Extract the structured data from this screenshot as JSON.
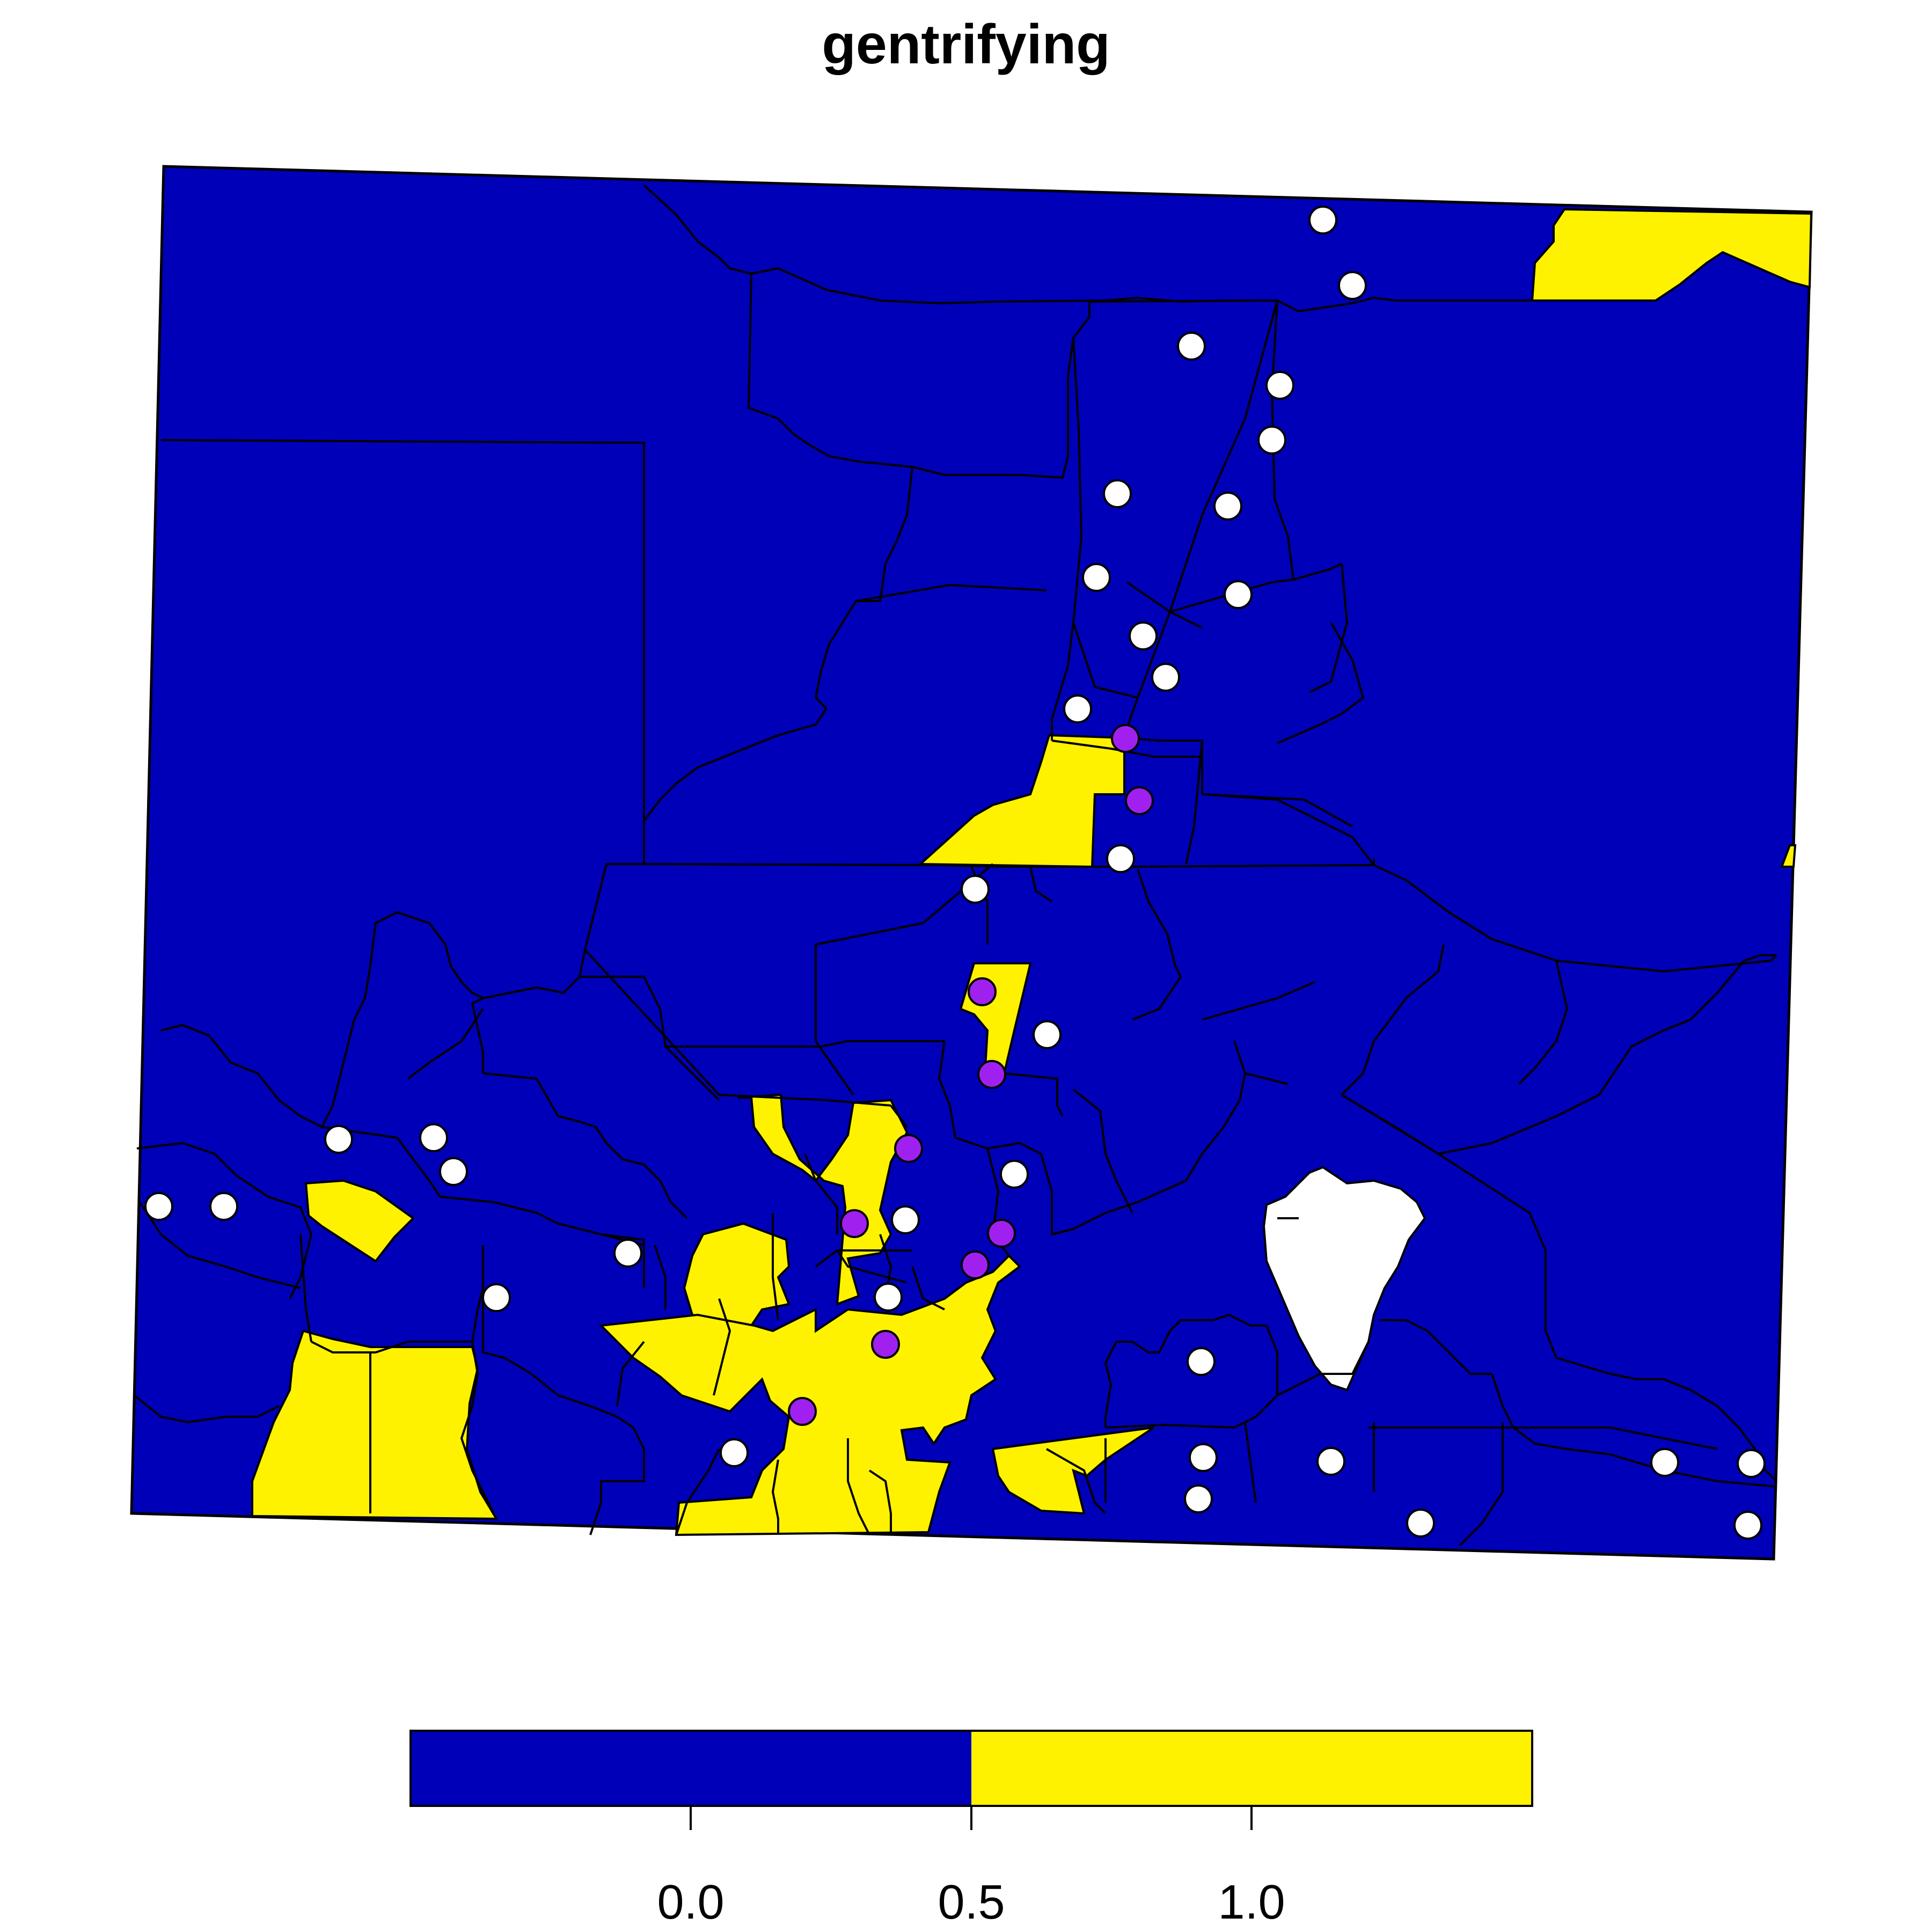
{
  "title": "gentrifying",
  "colors": {
    "fill_low": "#0000B8",
    "fill_high": "#FFF200",
    "missing": "#FFFFFF",
    "point_white": "#FFFFFF",
    "point_purple": "#A020F0",
    "outline": "#000000"
  },
  "legend": {
    "bins": [
      {
        "from": -0.5,
        "to": 0.5,
        "color": "#0000B8"
      },
      {
        "from": 0.5,
        "to": 1.5,
        "color": "#FFF200"
      }
    ],
    "ticks": [
      "0.0",
      "0.5",
      "1.0"
    ]
  },
  "points": {
    "white_count": 40,
    "purple_count": 12
  }
}
